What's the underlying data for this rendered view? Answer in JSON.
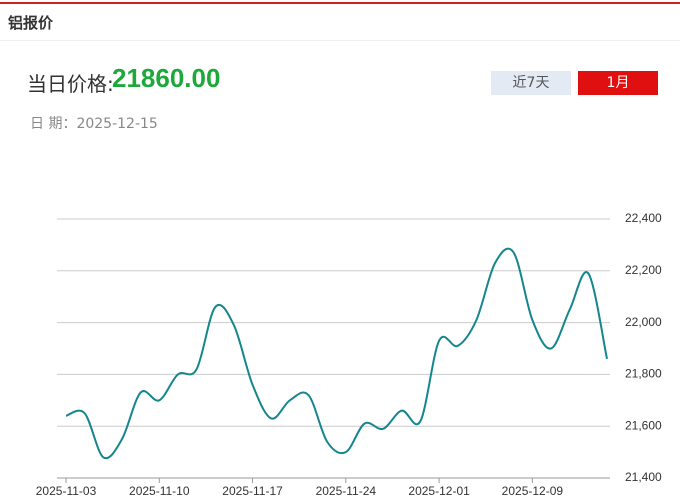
{
  "header": {
    "title": "铝报价"
  },
  "price": {
    "label": "当日价格:",
    "value": "21860.00"
  },
  "date": {
    "label": "日 期：",
    "value": "2025-12-15"
  },
  "buttons": [
    "近7天",
    "1月"
  ],
  "chart_data": {
    "type": "line",
    "categories": [
      "2025-11-03",
      null,
      null,
      null,
      null,
      "2025-11-10",
      null,
      null,
      null,
      null,
      "2025-11-17",
      null,
      null,
      null,
      null,
      "2025-11-24",
      null,
      null,
      null,
      null,
      "2025-12-01",
      null,
      null,
      null,
      null,
      "2025-12-09",
      null,
      null,
      null,
      null
    ],
    "values": [
      21640,
      21650,
      21480,
      21550,
      21730,
      21700,
      21800,
      21820,
      22060,
      21990,
      21760,
      21630,
      21700,
      21720,
      21540,
      21500,
      21610,
      21590,
      21660,
      21620,
      21930,
      21910,
      22010,
      22230,
      22270,
      22010,
      21900,
      22050,
      22190,
      21860
    ],
    "color": "#14868c",
    "ylim": [
      21400,
      22400
    ],
    "yticks": [
      {
        "value": 21400,
        "label": "21,400"
      },
      {
        "value": 21600,
        "label": "21,600"
      },
      {
        "value": 21800,
        "label": "21,800"
      },
      {
        "value": 22000,
        "label": "22,000"
      },
      {
        "value": 22200,
        "label": "22,200"
      },
      {
        "value": 22400,
        "label": "22,400"
      }
    ],
    "grid": true
  }
}
